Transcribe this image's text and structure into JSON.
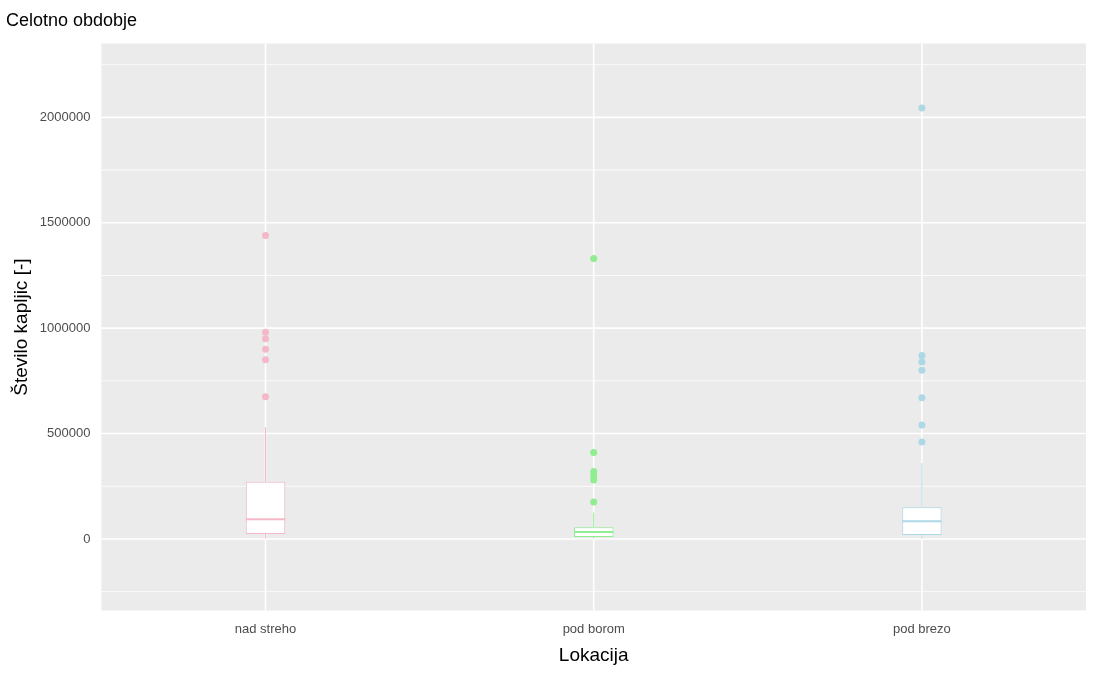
{
  "chart_data": {
    "type": "box",
    "title": "Celotno obdobje",
    "xlabel": "Lokacija",
    "ylabel": "Število kapljic [-]",
    "categories": [
      "nad streho",
      "pod borom",
      "pod brezo"
    ],
    "colors": [
      "#f4b8c8",
      "#90ee90",
      "#add8e6"
    ],
    "boxes": [
      {
        "low": 2000,
        "q1": 23000,
        "median": 93000,
        "q3": 271000,
        "high": 530000,
        "outliers": [
          675000,
          850000,
          900000,
          950000,
          980000,
          1440000
        ]
      },
      {
        "low": 1000,
        "q1": 9000,
        "median": 33000,
        "q3": 56000,
        "high": 126000,
        "outliers": [
          175000,
          280000,
          300000,
          320000,
          410000,
          1330000
        ]
      },
      {
        "low": 1000,
        "q1": 19000,
        "median": 84000,
        "q3": 150000,
        "high": 360000,
        "outliers": [
          460000,
          540000,
          670000,
          800000,
          840000,
          870000,
          2045000
        ]
      }
    ],
    "ylim": [
      -340000,
      2350000
    ],
    "yticks": [
      0,
      500000,
      1000000,
      1500000,
      2000000
    ],
    "grid": true,
    "legend": false
  }
}
